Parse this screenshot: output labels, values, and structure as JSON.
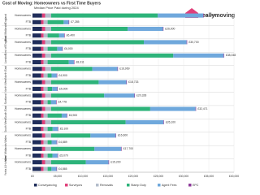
{
  "chart_data": {
    "type": "stacked-barh",
    "title": "Cost of Moving: Homeowners vs First Time Buyers",
    "subtitle": "Median Price Paid during 2024",
    "logo": "reallymoving",
    "regions": [
      "England",
      "East Midlands",
      "East of England",
      "London",
      "North East",
      "North West",
      "Scotland",
      "South East",
      "South West",
      "Wales",
      "West Midlands",
      "Yorks & Humber"
    ],
    "categories": [
      "Homeowners",
      "FTB",
      "Homeowners",
      "FTB",
      "Homeowners",
      "FTB",
      "Homeowners",
      "FTB",
      "Homeowners",
      "FTB",
      "Homeowners",
      "FTB",
      "Homeowners",
      "FTB",
      "Homeowners",
      "FTB",
      "Homeowners",
      "FTB",
      "Homeowners",
      "FTB",
      "Homeowners",
      "FTB",
      "Homeowners",
      "FTB"
    ],
    "series": [
      {
        "name": "Conveyancing",
        "color": "#1f2d5a",
        "values": [
          1900,
          1700,
          1900,
          1700,
          1900,
          1700,
          1900,
          1700,
          1900,
          1700,
          1900,
          1700,
          1900,
          1700,
          1900,
          1700,
          1900,
          1700,
          1900,
          1700,
          1900,
          1700,
          1900,
          1700
        ]
      },
      {
        "name": "Surveyors",
        "color": "#e0407a",
        "values": [
          600,
          500,
          600,
          500,
          600,
          500,
          600,
          500,
          600,
          500,
          600,
          500,
          600,
          500,
          600,
          500,
          600,
          500,
          600,
          500,
          600,
          500,
          600,
          500
        ]
      },
      {
        "name": "Removals",
        "color": "#b3bccb",
        "values": [
          1200,
          800,
          1200,
          800,
          1200,
          800,
          1200,
          800,
          1200,
          800,
          1200,
          800,
          1200,
          800,
          1200,
          800,
          1200,
          800,
          1200,
          800,
          1200,
          800,
          1200,
          800
        ]
      },
      {
        "name": "Stamp Duty",
        "color": "#2db37a",
        "values": [
          21174,
          3185,
          15200,
          2300,
          18400,
          1900,
          24248,
          4211,
          8169,
          800,
          9433,
          900,
          10528,
          678,
          19671,
          2800,
          14800,
          1000,
          7800,
          789,
          8600,
          970,
          6900,
          765
        ]
      },
      {
        "name": "Agent Fees",
        "color": "#6fa8dc",
        "values": [
          9000,
          1000,
          7000,
          1000,
          8500,
          1000,
          10000,
          1000,
          5000,
          1000,
          5500,
          1000,
          6000,
          1000,
          9000,
          1000,
          7500,
          1000,
          5000,
          1000,
          5300,
          1000,
          4500,
          1000
        ]
      },
      {
        "name": "EPC",
        "color": "#8e3a9a",
        "values": [
          100,
          100,
          100,
          100,
          100,
          100,
          100,
          100,
          100,
          100,
          100,
          100,
          100,
          100,
          100,
          100,
          100,
          100,
          100,
          100,
          100,
          100,
          100,
          100
        ]
      }
    ],
    "totals": {
      "values": [
        33974,
        7285,
        26000,
        6400,
        30700,
        6000,
        38048,
        8311,
        16969,
        4900,
        18733,
        5000,
        20328,
        4778,
        32471,
        6900,
        26100,
        5100,
        16600,
        4889,
        17700,
        5070,
        15200,
        4865
      ],
      "value_labels": [
        "£33,974",
        "£7,285",
        "£26,000",
        "£6,400",
        "£30,700",
        "£6,000",
        "£38,048",
        "£8,311",
        "£16,969",
        "£4,900",
        "£18,733",
        "£5,000",
        "£20,328",
        "£4,778",
        "£32,471",
        "£6,900",
        "£26,100",
        "£5,100",
        "£16,600",
        "£4,889",
        "£17,700",
        "£5,070",
        "£15,200",
        "£4,865"
      ]
    },
    "xlim": [
      0,
      40000
    ],
    "xticks": [
      {
        "value": 0,
        "label": "£0"
      },
      {
        "value": 5000,
        "label": "£5,000"
      },
      {
        "value": 10000,
        "label": "£10,000"
      },
      {
        "value": 15000,
        "label": "£15,000"
      },
      {
        "value": 20000,
        "label": "£20,000"
      },
      {
        "value": 25000,
        "label": "£25,000"
      },
      {
        "value": 30000,
        "label": "£30,000"
      },
      {
        "value": 35000,
        "label": "£35,000"
      },
      {
        "value": 40000,
        "label": "£40,000"
      }
    ],
    "grid": true,
    "legend": "bottom"
  }
}
